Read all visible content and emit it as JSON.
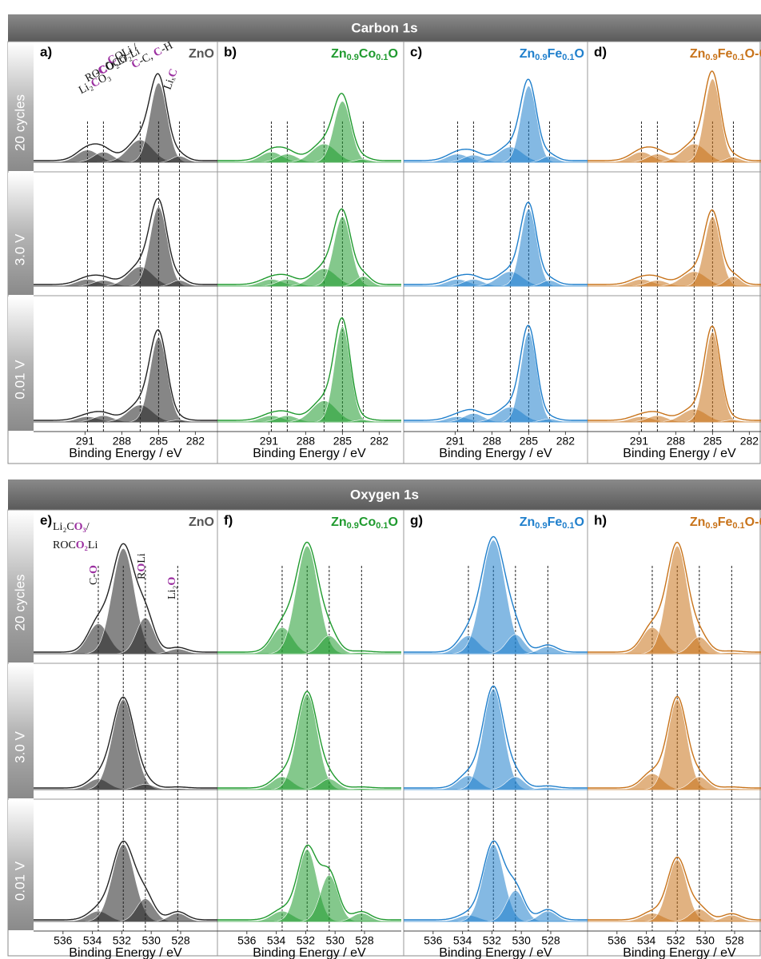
{
  "sections": [
    "Carbon 1s",
    "Oxygen 1s"
  ],
  "rows": [
    "20 cycles",
    "3.0 V",
    "0.01 V"
  ],
  "chart_data": [
    {
      "type": "xps",
      "panel": "a)",
      "title": [
        "ZnO"
      ],
      "color": "#222222",
      "xlim": [
        295.2,
        280.2
      ],
      "xticks": [
        291,
        288,
        285,
        282
      ],
      "xlabel": "Binding Energy / eV",
      "annotations": [
        {
          "parts": [
            "Li₂",
            "C",
            "O₃"
          ],
          "highlight": [
            1
          ]
        },
        {
          "parts": [
            "RO",
            "C",
            "O₂Li"
          ],
          "highlight": [
            1
          ]
        },
        {
          "parts": [
            "-",
            "C",
            "OCO₂Li"
          ],
          "highlight": [
            1
          ]
        },
        {
          "parts": [
            "-",
            "C",
            "OLi /"
          ],
          "highlight": [
            1
          ]
        },
        {
          "parts": [
            "C",
            "-C, ",
            "C",
            "-H"
          ],
          "highlight": [
            0,
            2
          ]
        },
        {
          "parts": [
            "Liₓ",
            "C"
          ],
          "highlight": [
            1
          ]
        }
      ],
      "series": [
        {
          "peaks": [
            {
              "center": 290.8,
              "height": 0.12,
              "width": 0.9
            },
            {
              "center": 289.5,
              "height": 0.1,
              "width": 0.8
            },
            {
              "center": 286.5,
              "height": 0.22,
              "width": 1.0
            },
            {
              "center": 285,
              "height": 0.78,
              "width": 0.7
            },
            {
              "center": 283.3,
              "height": 0.06,
              "width": 0.6
            }
          ]
        },
        {
          "peaks": [
            {
              "center": 290.8,
              "height": 0.07,
              "width": 0.9
            },
            {
              "center": 289.5,
              "height": 0.06,
              "width": 0.8
            },
            {
              "center": 286.5,
              "height": 0.2,
              "width": 1.0
            },
            {
              "center": 285,
              "height": 0.82,
              "width": 0.7
            },
            {
              "center": 283.3,
              "height": 0.06,
              "width": 0.6
            }
          ]
        },
        {
          "peaks": [
            {
              "center": 290.8,
              "height": 0.05,
              "width": 0.9
            },
            {
              "center": 289.5,
              "height": 0.06,
              "width": 0.8
            },
            {
              "center": 286.5,
              "height": 0.16,
              "width": 1.0
            },
            {
              "center": 285,
              "height": 0.8,
              "width": 0.7
            },
            {
              "center": 283.3,
              "height": 0.02,
              "width": 0.6
            }
          ]
        }
      ]
    },
    {
      "type": "xps",
      "panel": "b)",
      "title": [
        "Zn",
        "0.9",
        "Co",
        "0.1",
        "O"
      ],
      "color": "#1f9a2e",
      "xlim": [
        295.2,
        280.2
      ],
      "xticks": [
        291,
        288,
        285,
        282
      ],
      "xlabel": "Binding Energy / eV",
      "series": [
        {
          "peaks": [
            {
              "center": 290.8,
              "height": 0.1,
              "width": 0.9
            },
            {
              "center": 289.5,
              "height": 0.08,
              "width": 0.8
            },
            {
              "center": 286.5,
              "height": 0.18,
              "width": 1.0
            },
            {
              "center": 285,
              "height": 0.6,
              "width": 0.7
            },
            {
              "center": 283.3,
              "height": 0.03,
              "width": 0.6
            }
          ]
        },
        {
          "peaks": [
            {
              "center": 290.8,
              "height": 0.07,
              "width": 0.9
            },
            {
              "center": 289.5,
              "height": 0.07,
              "width": 0.8
            },
            {
              "center": 286.5,
              "height": 0.18,
              "width": 1.0
            },
            {
              "center": 285,
              "height": 0.72,
              "width": 0.7
            },
            {
              "center": 283.3,
              "height": 0.1,
              "width": 0.6
            }
          ]
        },
        {
          "peaks": [
            {
              "center": 290.8,
              "height": 0.06,
              "width": 0.9
            },
            {
              "center": 289.5,
              "height": 0.06,
              "width": 0.8
            },
            {
              "center": 286.5,
              "height": 0.2,
              "width": 1.0
            },
            {
              "center": 285,
              "height": 0.9,
              "width": 0.65
            },
            {
              "center": 283.3,
              "height": 0.02,
              "width": 0.6
            }
          ]
        }
      ]
    },
    {
      "type": "xps",
      "panel": "c)",
      "title": [
        "Zn",
        "0.9",
        "Fe",
        "0.1",
        "O"
      ],
      "color": "#1f7fcc",
      "xlim": [
        295.2,
        280.2
      ],
      "xticks": [
        291,
        288,
        285,
        282
      ],
      "xlabel": "Binding Energy / eV",
      "series": [
        {
          "peaks": [
            {
              "center": 290.8,
              "height": 0.08,
              "width": 0.9
            },
            {
              "center": 289.5,
              "height": 0.07,
              "width": 0.8
            },
            {
              "center": 286.5,
              "height": 0.15,
              "width": 1.0
            },
            {
              "center": 285,
              "height": 0.75,
              "width": 0.65
            },
            {
              "center": 283.3,
              "height": 0.06,
              "width": 0.6
            }
          ]
        },
        {
          "peaks": [
            {
              "center": 290.8,
              "height": 0.07,
              "width": 0.9
            },
            {
              "center": 289.5,
              "height": 0.07,
              "width": 0.8
            },
            {
              "center": 286.5,
              "height": 0.15,
              "width": 1.0
            },
            {
              "center": 285,
              "height": 0.8,
              "width": 0.65
            },
            {
              "center": 283.3,
              "height": 0.06,
              "width": 0.6
            }
          ]
        },
        {
          "peaks": [
            {
              "center": 290.8,
              "height": 0.05,
              "width": 0.9
            },
            {
              "center": 289.5,
              "height": 0.08,
              "width": 0.8
            },
            {
              "center": 286.5,
              "height": 0.14,
              "width": 1.0
            },
            {
              "center": 285,
              "height": 0.85,
              "width": 0.65
            },
            {
              "center": 283.3,
              "height": 0.03,
              "width": 0.6
            }
          ]
        }
      ]
    },
    {
      "type": "xps",
      "panel": "d)",
      "title": [
        "Zn",
        "0.9",
        "Fe",
        "0.1",
        "O-C"
      ],
      "color": "#c8731a",
      "xlim": [
        295.2,
        280.2
      ],
      "xticks": [
        291,
        288,
        285,
        282
      ],
      "xlabel": "Binding Energy / eV",
      "series": [
        {
          "peaks": [
            {
              "center": 290.8,
              "height": 0.1,
              "width": 0.9
            },
            {
              "center": 289.5,
              "height": 0.08,
              "width": 0.8
            },
            {
              "center": 286.5,
              "height": 0.18,
              "width": 1.0
            },
            {
              "center": 285,
              "height": 0.82,
              "width": 0.65
            },
            {
              "center": 283.3,
              "height": 0.05,
              "width": 0.6
            }
          ]
        },
        {
          "peaks": [
            {
              "center": 290.8,
              "height": 0.07,
              "width": 0.9
            },
            {
              "center": 289.5,
              "height": 0.06,
              "width": 0.8
            },
            {
              "center": 286.5,
              "height": 0.15,
              "width": 1.0
            },
            {
              "center": 285,
              "height": 0.72,
              "width": 0.65
            },
            {
              "center": 283.3,
              "height": 0.1,
              "width": 0.6
            }
          ]
        },
        {
          "peaks": [
            {
              "center": 290.8,
              "height": 0.05,
              "width": 0.9
            },
            {
              "center": 289.5,
              "height": 0.06,
              "width": 0.8
            },
            {
              "center": 286.5,
              "height": 0.12,
              "width": 1.0
            },
            {
              "center": 285,
              "height": 0.85,
              "width": 0.65
            },
            {
              "center": 283.3,
              "height": 0.02,
              "width": 0.6
            }
          ]
        }
      ]
    },
    {
      "type": "xps",
      "panel": "e)",
      "title": [
        "ZnO"
      ],
      "color": "#222222",
      "xlim": [
        538,
        525.5
      ],
      "xticks": [
        536,
        534,
        532,
        530,
        528
      ],
      "xlabel": "Binding Energy / eV",
      "annotations": [
        {
          "parts": [
            "Li₂C",
            "O₃",
            "/"
          ],
          "highlight": [
            1
          ]
        },
        {
          "parts": [
            "ROC",
            "O₂",
            "Li"
          ],
          "highlight": [
            1
          ]
        },
        {
          "parts": [
            "C-",
            "O"
          ],
          "highlight": [
            1
          ]
        },
        {
          "parts": [
            "R",
            "O",
            "Li"
          ],
          "highlight": [
            1
          ]
        },
        {
          "parts": [
            "Li₂",
            "O"
          ],
          "highlight": [
            1
          ]
        }
      ],
      "series": [
        {
          "peaks": [
            {
              "center": 533.6,
              "height": 0.25,
              "width": 0.7
            },
            {
              "center": 531.9,
              "height": 0.88,
              "width": 0.75
            },
            {
              "center": 530.4,
              "height": 0.3,
              "width": 0.6
            },
            {
              "center": 528.2,
              "height": 0.04,
              "width": 0.6
            }
          ]
        },
        {
          "peaks": [
            {
              "center": 533.6,
              "height": 0.1,
              "width": 0.7
            },
            {
              "center": 531.9,
              "height": 0.85,
              "width": 0.75
            },
            {
              "center": 530.4,
              "height": 0.05,
              "width": 0.6
            },
            {
              "center": 528.2,
              "height": 0.01,
              "width": 0.6
            }
          ]
        },
        {
          "peaks": [
            {
              "center": 533.6,
              "height": 0.1,
              "width": 0.7
            },
            {
              "center": 531.9,
              "height": 0.75,
              "width": 0.75
            },
            {
              "center": 530.4,
              "height": 0.22,
              "width": 0.6
            },
            {
              "center": 528.2,
              "height": 0.08,
              "width": 0.6
            }
          ]
        }
      ]
    },
    {
      "type": "xps",
      "panel": "f)",
      "title": [
        "Zn",
        "0.9",
        "Co",
        "0.1",
        "O"
      ],
      "color": "#1f9a2e",
      "xlim": [
        538,
        525.5
      ],
      "xticks": [
        536,
        534,
        532,
        530,
        528
      ],
      "xlabel": "Binding Energy / eV",
      "series": [
        {
          "peaks": [
            {
              "center": 533.6,
              "height": 0.22,
              "width": 0.7
            },
            {
              "center": 531.9,
              "height": 0.9,
              "width": 0.75
            },
            {
              "center": 530.4,
              "height": 0.15,
              "width": 0.6
            },
            {
              "center": 528.2,
              "height": 0.01,
              "width": 0.6
            }
          ]
        },
        {
          "peaks": [
            {
              "center": 533.6,
              "height": 0.12,
              "width": 0.7
            },
            {
              "center": 531.9,
              "height": 0.9,
              "width": 0.7
            },
            {
              "center": 530.4,
              "height": 0.1,
              "width": 0.6
            },
            {
              "center": 528.2,
              "height": 0.01,
              "width": 0.6
            }
          ]
        },
        {
          "peaks": [
            {
              "center": 533.6,
              "height": 0.1,
              "width": 0.7
            },
            {
              "center": 531.9,
              "height": 0.7,
              "width": 0.65
            },
            {
              "center": 530.4,
              "height": 0.45,
              "width": 0.6
            },
            {
              "center": 528.2,
              "height": 0.08,
              "width": 0.6
            }
          ]
        }
      ]
    },
    {
      "type": "xps",
      "panel": "g)",
      "title": [
        "Zn",
        "0.9",
        "Fe",
        "0.1",
        "O"
      ],
      "color": "#1f7fcc",
      "xlim": [
        538,
        525.5
      ],
      "xticks": [
        536,
        534,
        532,
        530,
        528
      ],
      "xlabel": "Binding Energy / eV",
      "series": [
        {
          "peaks": [
            {
              "center": 533.6,
              "height": 0.15,
              "width": 0.7
            },
            {
              "center": 531.9,
              "height": 0.95,
              "width": 0.8
            },
            {
              "center": 530.4,
              "height": 0.16,
              "width": 0.6
            },
            {
              "center": 528.2,
              "height": 0.06,
              "width": 0.6
            }
          ]
        },
        {
          "peaks": [
            {
              "center": 533.6,
              "height": 0.13,
              "width": 0.7
            },
            {
              "center": 531.9,
              "height": 0.95,
              "width": 0.7
            },
            {
              "center": 530.4,
              "height": 0.12,
              "width": 0.6
            },
            {
              "center": 528.2,
              "height": 0.02,
              "width": 0.6
            }
          ]
        },
        {
          "peaks": [
            {
              "center": 533.6,
              "height": 0.06,
              "width": 0.7
            },
            {
              "center": 531.9,
              "height": 0.75,
              "width": 0.7
            },
            {
              "center": 530.4,
              "height": 0.3,
              "width": 0.6
            },
            {
              "center": 528.2,
              "height": 0.1,
              "width": 0.6
            }
          ]
        }
      ]
    },
    {
      "type": "xps",
      "panel": "h)",
      "title": [
        "Zn",
        "0.9",
        "Fe",
        "0.1",
        "O-C"
      ],
      "color": "#c8731a",
      "xlim": [
        538,
        525.5
      ],
      "xticks": [
        536,
        534,
        532,
        530,
        528
      ],
      "xlabel": "Binding Energy / eV",
      "series": [
        {
          "peaks": [
            {
              "center": 533.6,
              "height": 0.22,
              "width": 0.7
            },
            {
              "center": 531.9,
              "height": 0.9,
              "width": 0.7
            },
            {
              "center": 530.4,
              "height": 0.14,
              "width": 0.6
            },
            {
              "center": 528.2,
              "height": 0.01,
              "width": 0.6
            }
          ]
        },
        {
          "peaks": [
            {
              "center": 533.6,
              "height": 0.15,
              "width": 0.7
            },
            {
              "center": 531.9,
              "height": 0.85,
              "width": 0.65
            },
            {
              "center": 530.4,
              "height": 0.12,
              "width": 0.6
            },
            {
              "center": 528.2,
              "height": 0.01,
              "width": 0.6
            }
          ]
        },
        {
          "peaks": [
            {
              "center": 533.6,
              "height": 0.08,
              "width": 0.7
            },
            {
              "center": 531.9,
              "height": 0.6,
              "width": 0.65
            },
            {
              "center": 530.4,
              "height": 0.12,
              "width": 0.6
            },
            {
              "center": 528.2,
              "height": 0.06,
              "width": 0.6
            }
          ]
        }
      ]
    }
  ]
}
